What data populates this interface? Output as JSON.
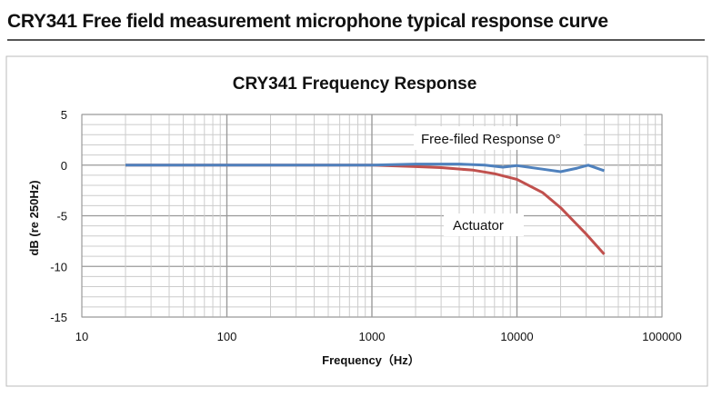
{
  "page_title": "CRY341 Free field measurement microphone typical response curve",
  "chart_data": {
    "type": "line",
    "title": "CRY341 Frequency Response",
    "xlabel": "Frequency（Hz）",
    "ylabel": "dB (re 250Hz)",
    "xscale": "log",
    "xlim": [
      10,
      100000
    ],
    "ylim": [
      -15,
      5
    ],
    "xticks": [
      "10",
      "100",
      "1000",
      "10000",
      "100000"
    ],
    "yticks": [
      "5",
      "0",
      "-5",
      "-10",
      "-15"
    ],
    "grid": true,
    "series": [
      {
        "name": "Free-filed Response  0°",
        "color": "#4f81bd",
        "x": [
          20,
          100,
          500,
          1000,
          2000,
          4000,
          6000,
          8000,
          10000,
          15000,
          20000,
          26000,
          31000,
          40000
        ],
        "y": [
          0,
          0,
          0,
          0,
          0.1,
          0.1,
          0,
          -0.2,
          -0.05,
          -0.4,
          -0.65,
          -0.3,
          0,
          -0.55
        ]
      },
      {
        "name": "Actuator",
        "color": "#c0504d",
        "x": [
          20,
          100,
          500,
          1000,
          2000,
          3000,
          5000,
          7000,
          10000,
          15000,
          20000,
          30000,
          40000
        ],
        "y": [
          0,
          0,
          0,
          0,
          -0.15,
          -0.25,
          -0.5,
          -0.85,
          -1.4,
          -2.7,
          -4.2,
          -6.8,
          -8.8
        ]
      }
    ]
  }
}
